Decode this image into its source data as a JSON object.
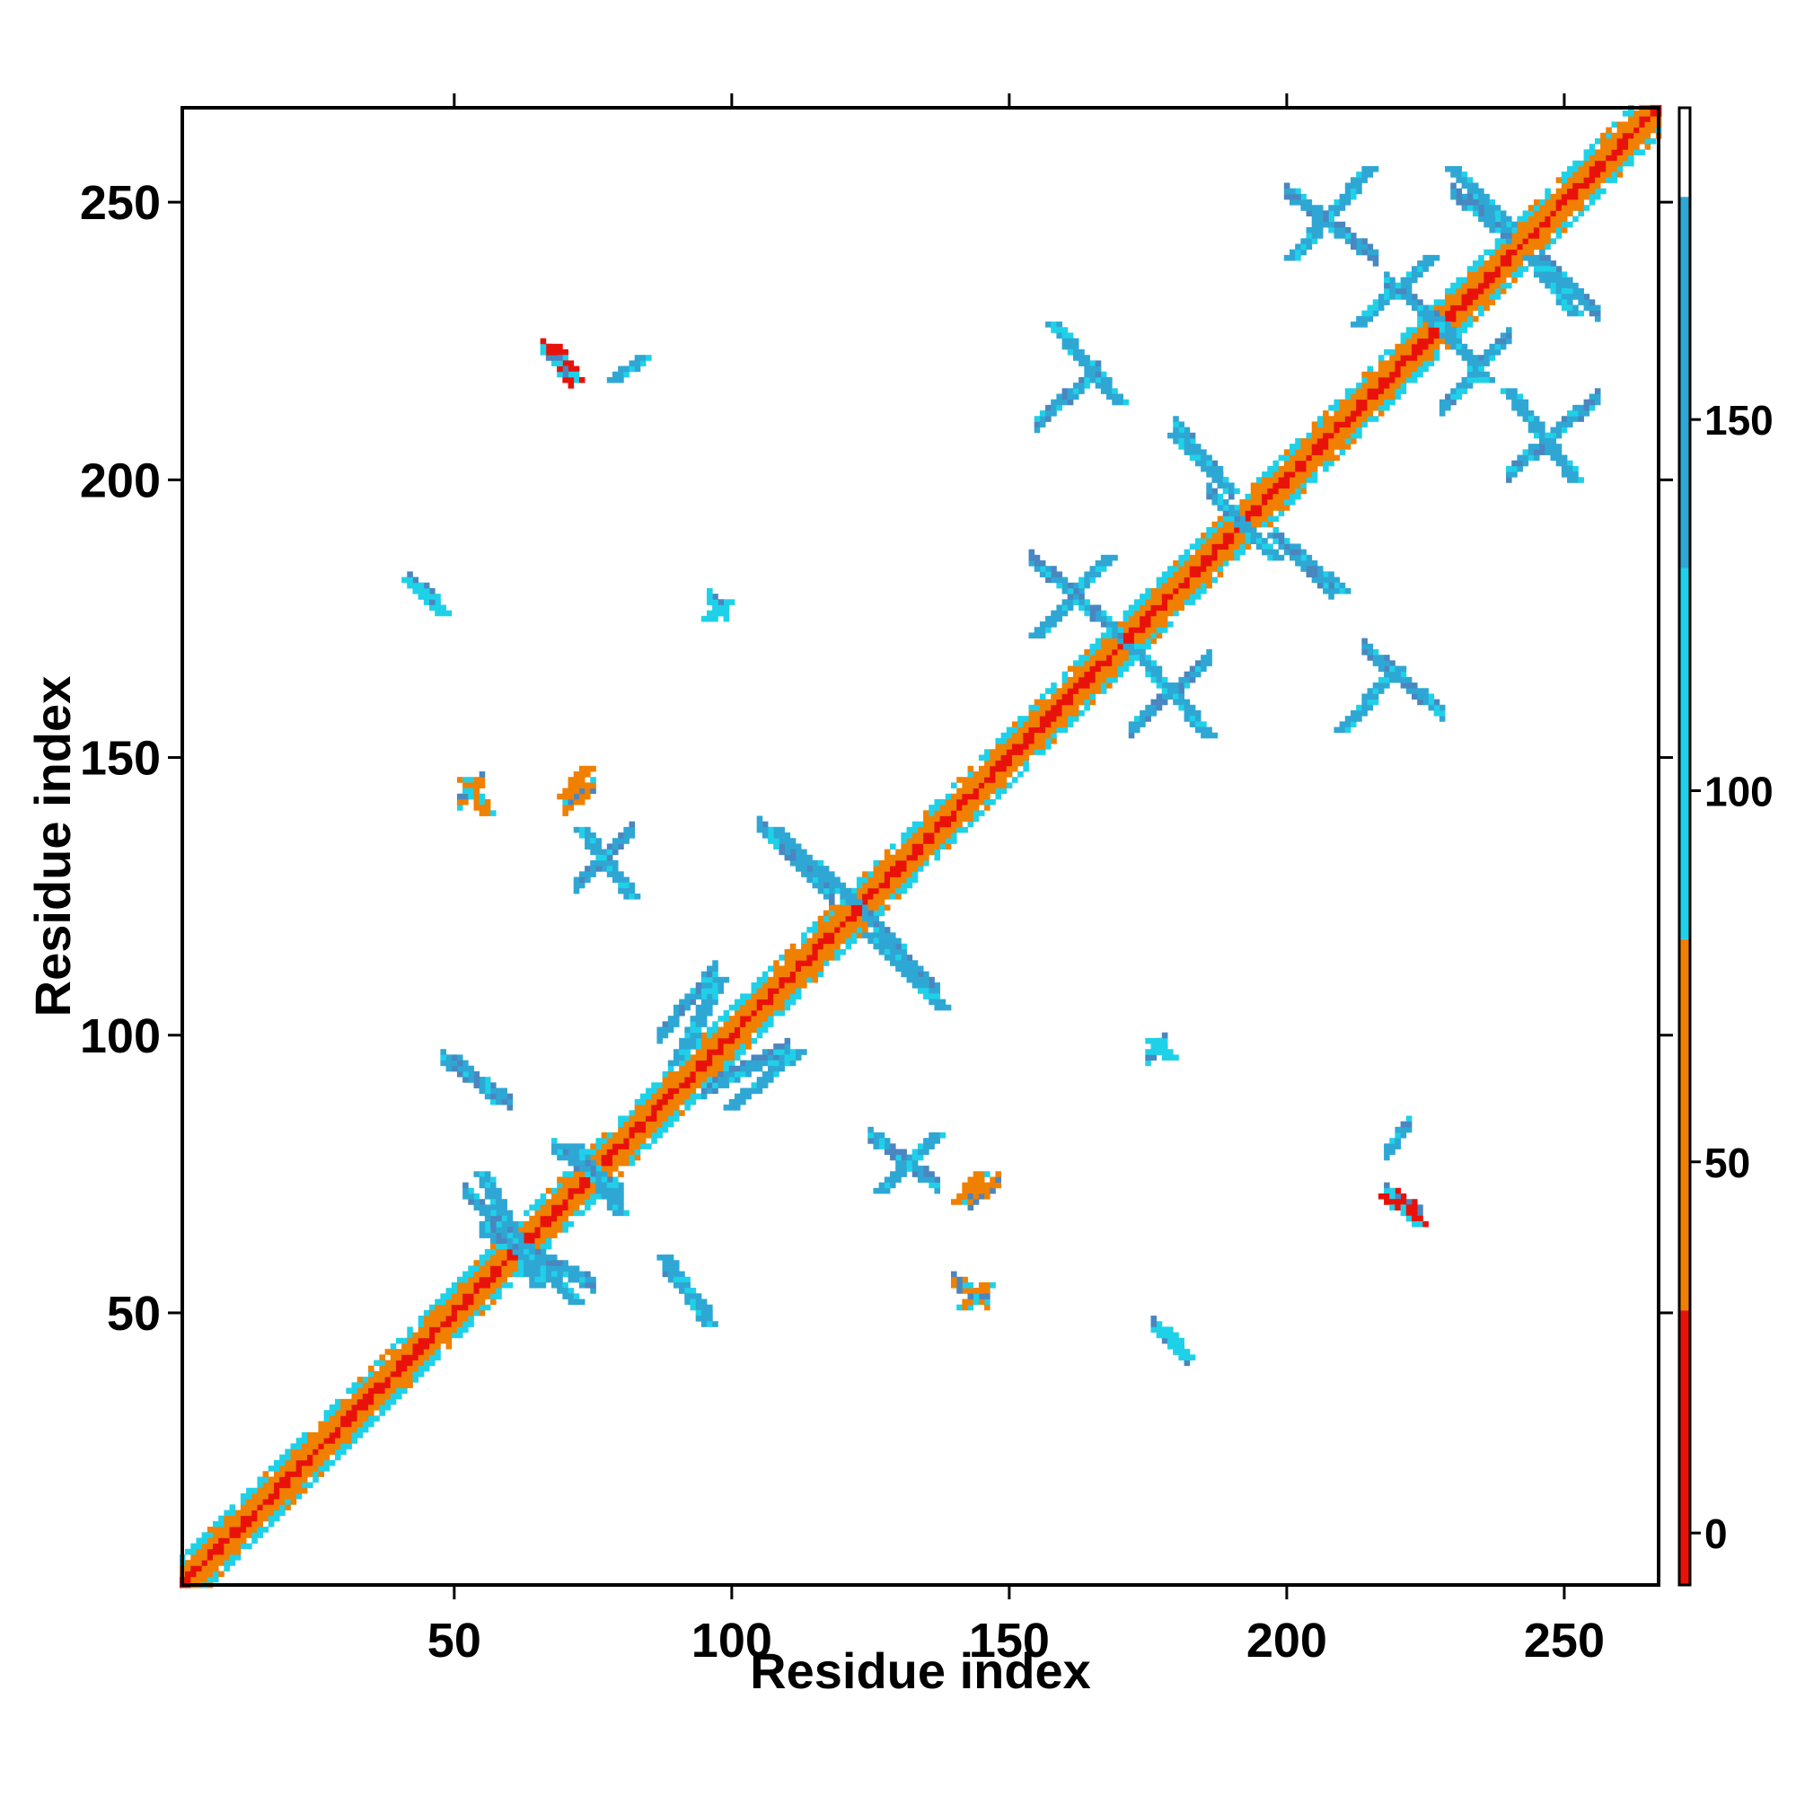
{
  "chart_data": {
    "type": "heatmap",
    "title": "",
    "xlabel": "Residue index",
    "ylabel": "Residue index",
    "xlim": [
      1,
      267
    ],
    "ylim": [
      1,
      267
    ],
    "x_ticks": [
      50,
      100,
      150,
      200,
      250
    ],
    "y_ticks": [
      50,
      100,
      150,
      200,
      250
    ],
    "grid": false,
    "colorbar": {
      "position": "right",
      "ticks": [
        0,
        50,
        100,
        150
      ],
      "range": [
        -7,
        192
      ],
      "bands": [
        {
          "from": -7,
          "to": 30,
          "color": "#e8120a"
        },
        {
          "from": 30,
          "to": 80,
          "color": "#f08000"
        },
        {
          "from": 80,
          "to": 130,
          "color": "#1fd1e8"
        },
        {
          "from": 130,
          "to": 180,
          "color": "#2fa7d4"
        },
        {
          "from": 180,
          "to": 192,
          "color": "#ffffff"
        }
      ]
    },
    "palette": {
      "red": "#e8120a",
      "orange": "#f08000",
      "cyan": "#1fd1e8",
      "lightblue": "#2fa7d4",
      "steelblue": "#4a86c0"
    },
    "diagonal_band": {
      "start": 1,
      "end": 267,
      "halfwidth": 5
    },
    "contact_features": [
      {
        "x": [
          55,
          65
        ],
        "y": [
          55,
          75
        ],
        "value": 150
      },
      {
        "x": [
          62,
          72
        ],
        "y": [
          52,
          62
        ],
        "value": 150
      },
      {
        "x": [
          72,
          80
        ],
        "y": [
          68,
          80
        ],
        "value": 150
      },
      {
        "x": [
          73,
          82
        ],
        "y": [
          125,
          137
        ],
        "value": 150
      },
      {
        "x": [
          90,
          98
        ],
        "y": [
          95,
          110
        ],
        "value": 140
      },
      {
        "x": [
          100,
          112
        ],
        "y": [
          87,
          97
        ],
        "value": 145
      },
      {
        "x": [
          108,
          122
        ],
        "y": [
          124,
          137
        ],
        "value": 145
      },
      {
        "x": [
          125,
          138
        ],
        "y": [
          105,
          118
        ],
        "value": 145
      },
      {
        "x": [
          127,
          137
        ],
        "y": [
          72,
          82
        ],
        "value": 150
      },
      {
        "x": [
          50,
          58
        ],
        "y": [
          88,
          96
        ],
        "value": 150
      },
      {
        "x": [
          88,
          96
        ],
        "y": [
          48,
          60
        ],
        "value": 140
      },
      {
        "x": [
          155,
          168
        ],
        "y": [
          172,
          186
        ],
        "value": 150
      },
      {
        "x": [
          172,
          186
        ],
        "y": [
          154,
          170
        ],
        "value": 150
      },
      {
        "x": [
          188,
          198
        ],
        "y": [
          186,
          196
        ],
        "value": 130
      },
      {
        "x": [
          198,
          210
        ],
        "y": [
          180,
          190
        ],
        "value": 135
      },
      {
        "x": [
          180,
          190
        ],
        "y": [
          198,
          208
        ],
        "value": 135
      },
      {
        "x": [
          201,
          215
        ],
        "y": [
          240,
          256
        ],
        "value": 150
      },
      {
        "x": [
          213,
          226
        ],
        "y": [
          228,
          240
        ],
        "value": 145
      },
      {
        "x": [
          226,
          236
        ],
        "y": [
          218,
          230
        ],
        "value": 150
      },
      {
        "x": [
          230,
          240
        ],
        "y": [
          246,
          256
        ],
        "value": 150
      },
      {
        "x": [
          244,
          252
        ],
        "y": [
          230,
          240
        ],
        "value": 150
      },
      {
        "x": [
          240,
          252
        ],
        "y": [
          200,
          216
        ],
        "value": 150
      },
      {
        "x": [
          158,
          170
        ],
        "y": [
          214,
          228
        ],
        "value": 150
      },
      {
        "x": [
          210,
          220
        ],
        "y": [
          155,
          166
        ],
        "value": 150
      },
      {
        "x": [
          79,
          84
        ],
        "y": [
          218,
          222
        ],
        "value": 130
      },
      {
        "x": [
          68,
          72
        ],
        "y": [
          218,
          224
        ],
        "value": 15
      },
      {
        "x": [
          218,
          224
        ],
        "y": [
          66,
          71
        ],
        "value": 15
      },
      {
        "x": [
          42,
          48
        ],
        "y": [
          176,
          182
        ],
        "value": 110
      },
      {
        "x": [
          178,
          182
        ],
        "y": [
          42,
          47
        ],
        "value": 110
      },
      {
        "x": [
          141,
          145
        ],
        "y": [
          70,
          75
        ],
        "value": 60
      },
      {
        "x": [
          142,
          146
        ],
        "y": [
          51,
          55
        ],
        "value": 60
      },
      {
        "x": [
          52,
          56
        ],
        "y": [
          140,
          146
        ],
        "value": 60
      },
      {
        "x": [
          70,
          74
        ],
        "y": [
          143,
          148
        ],
        "value": 60
      },
      {
        "x": [
          96,
          99
        ],
        "y": [
          175,
          178
        ],
        "value": 120
      },
      {
        "x": [
          176,
          179
        ],
        "y": [
          96,
          99
        ],
        "value": 120
      }
    ]
  }
}
